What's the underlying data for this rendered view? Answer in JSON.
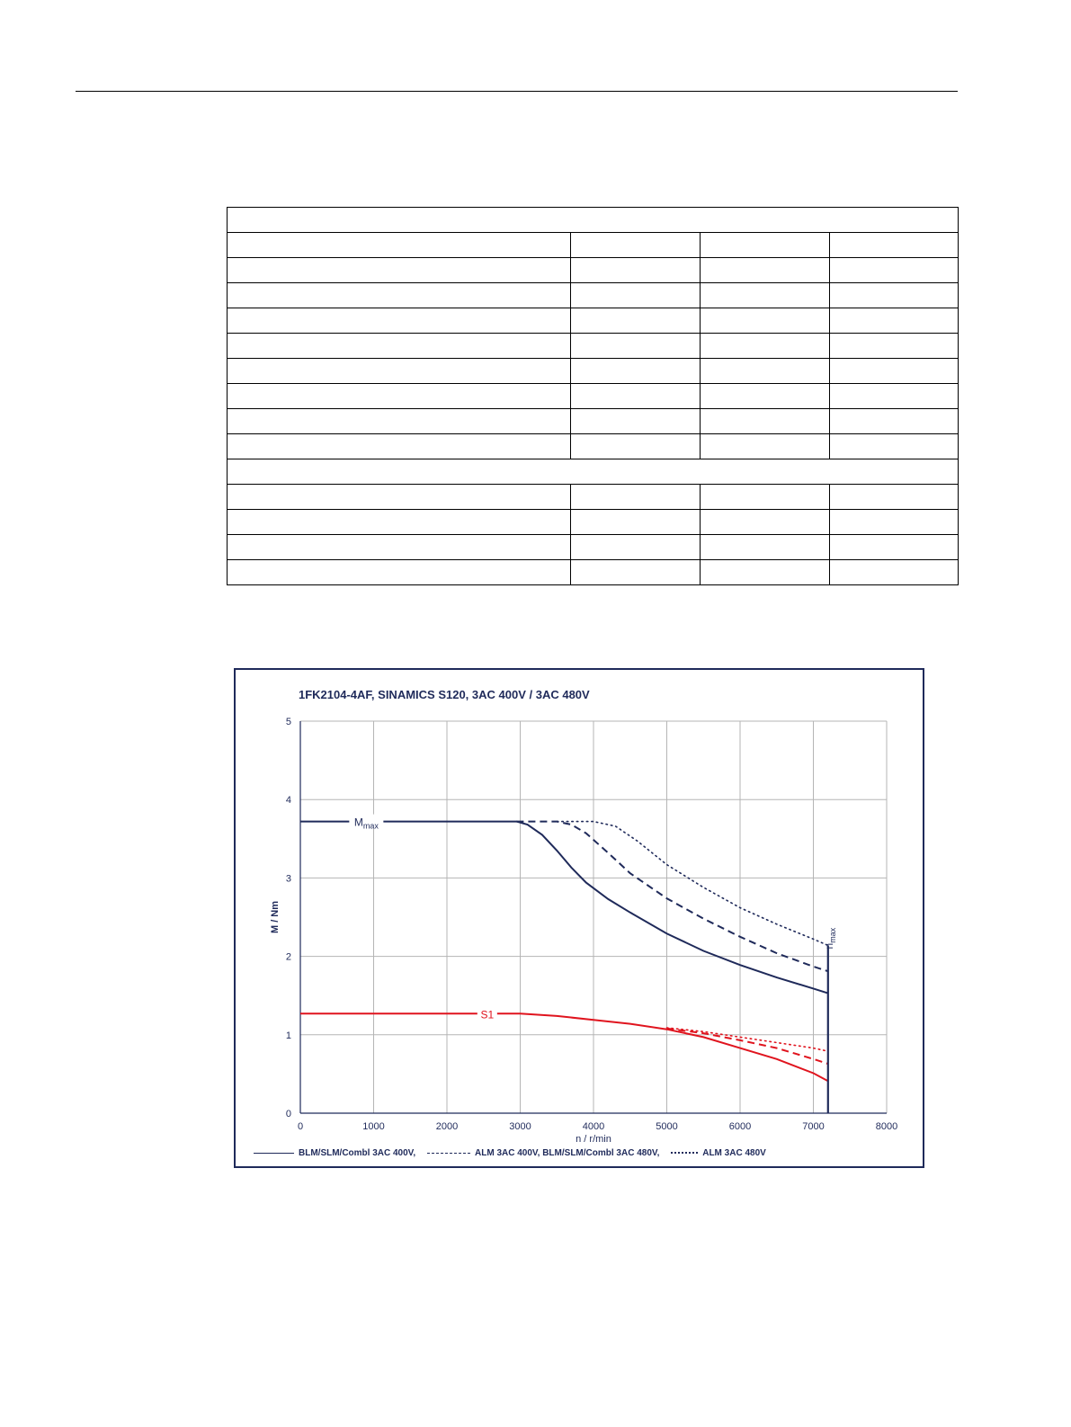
{
  "table": {
    "row_layout": [
      "header",
      "row",
      "row",
      "row",
      "row",
      "row",
      "row",
      "row",
      "row",
      "row",
      "header",
      "row",
      "row",
      "row",
      "row"
    ]
  },
  "colors": {
    "frame": "#1f2a5a",
    "mmax_curves": "#1f2a5a",
    "s1_curves": "#e0141e",
    "grid": "#b5b5b5"
  },
  "chart_data": {
    "type": "line",
    "title": "1FK2104-4AF,  SINAMICS S120,  3AC 400V / 3AC 480V",
    "xlabel": "n / r/min",
    "ylabel": "M / Nm",
    "xlim": [
      0,
      8000
    ],
    "ylim": [
      0,
      5
    ],
    "xticks": [
      0,
      1000,
      2000,
      3000,
      4000,
      5000,
      6000,
      7000,
      8000
    ],
    "yticks": [
      0,
      1,
      2,
      3,
      4,
      5
    ],
    "grid": true,
    "legend_position": "bottom",
    "legend": [
      {
        "label": "BLM/SLM/Combl 3AC 400V,",
        "style": "solid"
      },
      {
        "label": "ALM 3AC 400V, BLM/SLM/Combl 3AC 480V,",
        "style": "dashed"
      },
      {
        "label": "ALM 3AC 480V",
        "style": "dotted"
      }
    ],
    "annotations": [
      {
        "text": "M",
        "sub": "max",
        "x": 900,
        "y": 3.72,
        "color": "mmax"
      },
      {
        "text": "S1",
        "x": 2550,
        "y": 1.27,
        "color": "s1"
      },
      {
        "text": "n",
        "sub": "max",
        "x": 7200,
        "y": 2.3,
        "color": "mmax",
        "rotated": true
      }
    ],
    "nmax": {
      "x": 7200,
      "y_top": 2.14
    },
    "series": [
      {
        "group": "mmax",
        "style": "solid",
        "points": [
          [
            0,
            3.72
          ],
          [
            2950,
            3.72
          ],
          [
            3100,
            3.68
          ],
          [
            3300,
            3.55
          ],
          [
            3500,
            3.35
          ],
          [
            3700,
            3.13
          ],
          [
            3900,
            2.94
          ],
          [
            4200,
            2.73
          ],
          [
            4500,
            2.56
          ],
          [
            5000,
            2.29
          ],
          [
            5500,
            2.07
          ],
          [
            6000,
            1.89
          ],
          [
            6500,
            1.73
          ],
          [
            7000,
            1.59
          ],
          [
            7200,
            1.53
          ]
        ]
      },
      {
        "group": "mmax",
        "style": "dashed",
        "points": [
          [
            2950,
            3.72
          ],
          [
            3500,
            3.72
          ],
          [
            3700,
            3.68
          ],
          [
            3900,
            3.57
          ],
          [
            4200,
            3.32
          ],
          [
            4500,
            3.06
          ],
          [
            5000,
            2.74
          ],
          [
            5500,
            2.48
          ],
          [
            6000,
            2.25
          ],
          [
            6500,
            2.04
          ],
          [
            7000,
            1.87
          ],
          [
            7200,
            1.81
          ]
        ]
      },
      {
        "group": "mmax",
        "style": "dotted",
        "points": [
          [
            3500,
            3.72
          ],
          [
            4000,
            3.72
          ],
          [
            4300,
            3.66
          ],
          [
            4600,
            3.47
          ],
          [
            5000,
            3.17
          ],
          [
            5500,
            2.88
          ],
          [
            6000,
            2.62
          ],
          [
            6500,
            2.41
          ],
          [
            7000,
            2.22
          ],
          [
            7200,
            2.14
          ]
        ]
      },
      {
        "group": "s1",
        "style": "solid",
        "points": [
          [
            0,
            1.27
          ],
          [
            3000,
            1.27
          ],
          [
            3500,
            1.24
          ],
          [
            4000,
            1.19
          ],
          [
            4500,
            1.14
          ],
          [
            5000,
            1.07
          ],
          [
            5500,
            0.97
          ],
          [
            6000,
            0.83
          ],
          [
            6500,
            0.69
          ],
          [
            7000,
            0.51
          ],
          [
            7200,
            0.41
          ]
        ]
      },
      {
        "group": "s1",
        "style": "dashed",
        "points": [
          [
            5000,
            1.08
          ],
          [
            5500,
            1.02
          ],
          [
            6000,
            0.93
          ],
          [
            6500,
            0.83
          ],
          [
            7000,
            0.69
          ],
          [
            7200,
            0.63
          ]
        ]
      },
      {
        "group": "s1",
        "style": "dotted",
        "points": [
          [
            5000,
            1.09
          ],
          [
            5500,
            1.04
          ],
          [
            6000,
            0.97
          ],
          [
            6500,
            0.9
          ],
          [
            7000,
            0.83
          ],
          [
            7200,
            0.79
          ]
        ]
      }
    ]
  }
}
